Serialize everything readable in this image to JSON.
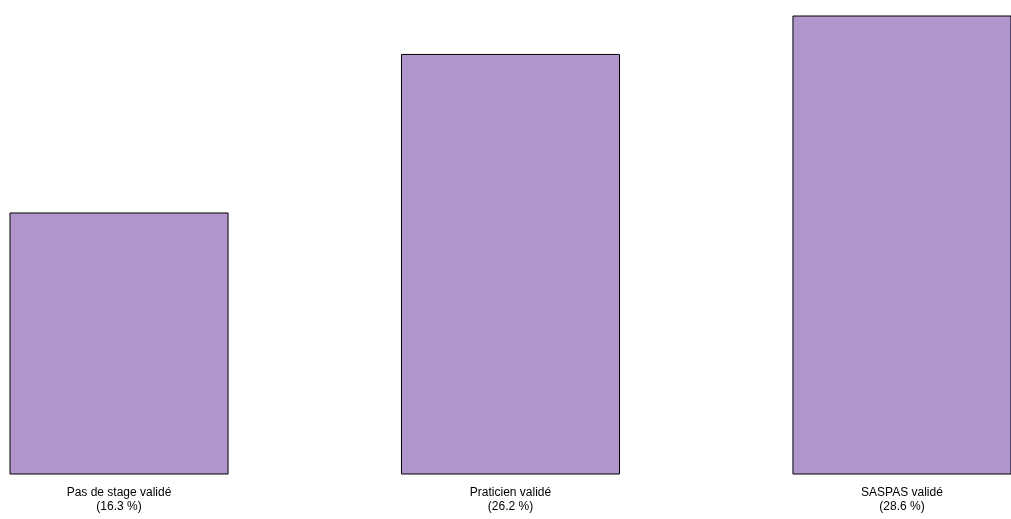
{
  "chart_data": {
    "type": "bar",
    "categories": [
      "Pas de stage validé",
      "Praticien validé",
      "SASPAS validé"
    ],
    "values": [
      16.3,
      26.2,
      28.6
    ],
    "value_labels": [
      "(16.3 %)",
      "(26.2 %)",
      "(28.6 %)"
    ],
    "color": "#b096cc"
  }
}
